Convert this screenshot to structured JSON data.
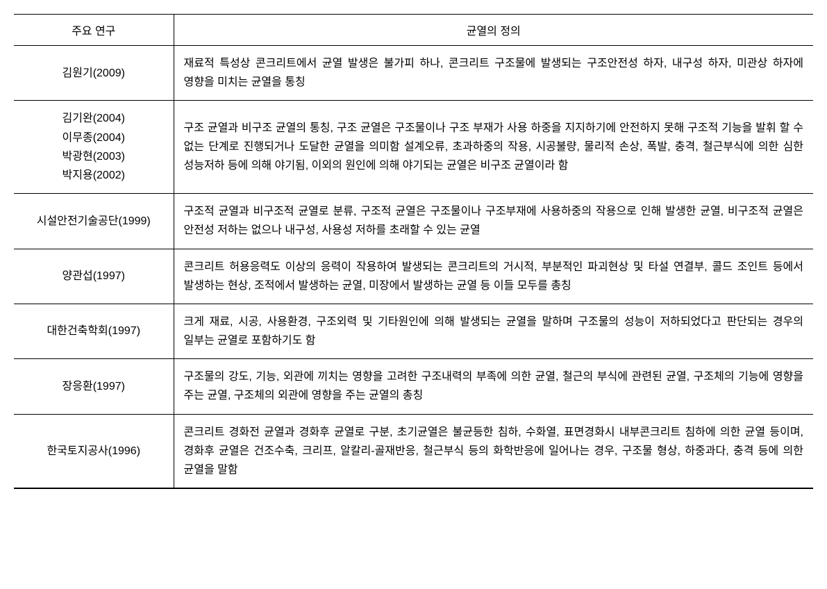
{
  "table": {
    "headers": {
      "study": "주요 연구",
      "definition": "균열의 정의"
    },
    "rows": [
      {
        "study": "김원기(2009)",
        "definition": "재료적 특성상 콘크리트에서 균열 발생은 불가피 하나, 콘크리트 구조물에 발생되는 구조안전성 하자, 내구성 하자, 미관상 하자에 영향을 미치는 균열을 통칭"
      },
      {
        "study": "김기완(2004)\n이무종(2004)\n박광현(2003)\n박지용(2002)",
        "definition": "구조 균열과 비구조 균열의 통칭, 구조 균열은 구조물이나 구조 부재가 사용 하중을 지지하기에 안전하지 못해 구조적 기능을 발휘 할 수 없는 단계로 진행되거나 도달한 균열을 의미함 설계오류, 초과하중의 작용, 시공불량, 물리적 손상, 폭발, 충격, 철근부식에 의한 심한 성능저하 등에 의해 야기됨, 이외의 원인에 의해 야기되는 균열은 비구조 균열이라 함"
      },
      {
        "study": "시설안전기술공단(1999)",
        "definition": "구조적 균열과 비구조적 균열로 분류, 구조적 균열은 구조물이나 구조부재에 사용하중의 작용으로 인해 발생한 균열, 비구조적 균열은 안전성 저하는 없으나 내구성, 사용성 저하를 초래할 수 있는 균열"
      },
      {
        "study": "양관섭(1997)",
        "definition": "콘크리트 허용응력도 이상의 응력이 작용하여 발생되는 콘크리트의 거시적, 부분적인 파괴현상 및 타설 연결부, 콜드 조인트 등에서 발생하는 현상, 조적에서 발생하는 균열, 미장에서 발생하는 균열 등 이들 모두를 총칭"
      },
      {
        "study": "대한건축학회(1997)",
        "definition": "크게 재료, 시공, 사용환경, 구조외력 및 기타원인에 의해 발생되는 균열을 말하며 구조물의 성능이 저하되었다고 판단되는 경우의 일부는 균열로 포함하기도 함"
      },
      {
        "study": "장응환(1997)",
        "definition": "구조물의 강도, 기능, 외관에 끼치는 영향을 고려한 구조내력의 부족에 의한 균열, 철근의 부식에 관련된 균열, 구조체의 기능에 영향을 주는 균열, 구조체의 외관에 영향을 주는 균열의 총칭"
      },
      {
        "study": "한국토지공사(1996)",
        "definition": "콘크리트 경화전 균열과 경화후 균열로 구분, 초기균열은 불균등한 침하, 수화열, 표면경화시 내부콘크리트 침하에 의한 균열 등이며, 경화후 균열은 건조수축, 크리프, 알칼리-골재반응, 철근부식 등의 화학반응에 일어나는 경우, 구조물 형상, 하중과다, 충격 등에 의한 균열을 말함"
      }
    ],
    "styling": {
      "font_family": "Malgun Gothic",
      "font_size": 16,
      "text_color": "#000000",
      "background_color": "#ffffff",
      "border_color": "#000000",
      "border_width": 1,
      "bottom_border_width": 2,
      "line_height": 1.7,
      "col_study_width": 230,
      "cell_padding_v": 12,
      "cell_padding_h": 14,
      "study_align": "center",
      "definition_align": "justify"
    }
  }
}
